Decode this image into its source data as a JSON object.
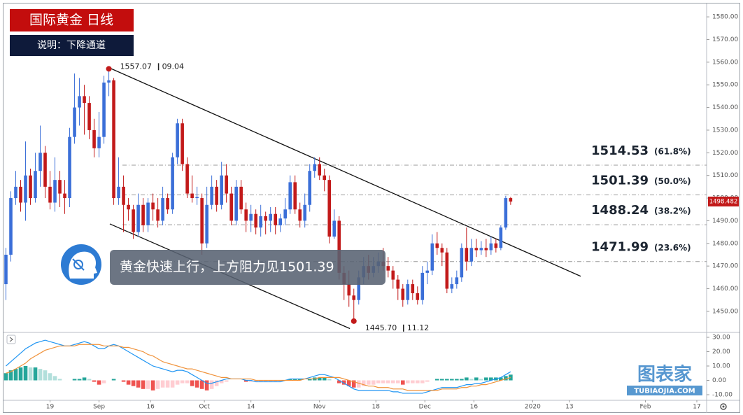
{
  "chart_data": {
    "type": "candlestick",
    "title": "国际黄金 日线",
    "subtitle": "说明：下降通道",
    "xlim": [
      -0.5,
      143
    ],
    "xticks": [
      {
        "value": 9,
        "label": "19"
      },
      {
        "value": 19,
        "label": "Sep"
      },
      {
        "value": 29.5,
        "label": "16"
      },
      {
        "value": 40.5,
        "label": "Oct"
      },
      {
        "value": 50,
        "label": "14"
      },
      {
        "value": 64,
        "label": "Nov"
      },
      {
        "value": 75.5,
        "label": "18"
      },
      {
        "value": 85.5,
        "label": "Dec"
      },
      {
        "value": 95.5,
        "label": "16"
      },
      {
        "value": 107.5,
        "label": "2020"
      },
      {
        "value": 115,
        "label": "13"
      },
      {
        "value": 130.5,
        "label": "Feb"
      },
      {
        "value": 141,
        "label": "17"
      }
    ],
    "ylim": [
      1440.7,
      1585.9
    ],
    "yticks": [
      {
        "value": 1450,
        "label": "1450.00"
      },
      {
        "value": 1460,
        "label": "1460.00"
      },
      {
        "value": 1470,
        "label": "1470.00"
      },
      {
        "value": 1480,
        "label": "1480.00"
      },
      {
        "value": 1490,
        "label": "1490.00"
      },
      {
        "value": 1500,
        "label": "1500.00"
      },
      {
        "value": 1510,
        "label": "1510.00"
      },
      {
        "value": 1520,
        "label": "1520.00"
      },
      {
        "value": 1530,
        "label": "1530.00"
      },
      {
        "value": 1540,
        "label": "1540.00"
      },
      {
        "value": 1550,
        "label": "1550.00"
      },
      {
        "value": 1560,
        "label": "1560.00"
      },
      {
        "value": 1570,
        "label": "1570.00"
      },
      {
        "value": 1580,
        "label": "1580.00"
      }
    ],
    "up_color": "#3b6fd8",
    "down_color": "#c21a1a",
    "ohlc": [
      [
        1462,
        1478,
        1455,
        1475
      ],
      [
        1475,
        1503,
        1472,
        1500
      ],
      [
        1500,
        1512,
        1497,
        1505
      ],
      [
        1505,
        1508,
        1494,
        1498
      ],
      [
        1498,
        1525,
        1490,
        1510
      ],
      [
        1510,
        1513,
        1497,
        1500
      ],
      [
        1500,
        1520,
        1498,
        1512
      ],
      [
        1512,
        1532,
        1505,
        1520
      ],
      [
        1520,
        1523,
        1500,
        1505
      ],
      [
        1505,
        1512,
        1495,
        1498
      ],
      [
        1498,
        1518,
        1494,
        1508
      ],
      [
        1508,
        1512,
        1496,
        1502
      ],
      [
        1502,
        1508,
        1493,
        1500
      ],
      [
        1500,
        1531,
        1496,
        1527
      ],
      [
        1527,
        1555,
        1524,
        1540
      ],
      [
        1540,
        1553,
        1532,
        1545
      ],
      [
        1545,
        1550,
        1528,
        1542
      ],
      [
        1542,
        1545,
        1526,
        1530
      ],
      [
        1530,
        1535,
        1518,
        1522
      ],
      [
        1522,
        1538,
        1518,
        1527
      ],
      [
        1527,
        1554,
        1524,
        1551
      ],
      [
        1551,
        1557.07,
        1545,
        1552
      ],
      [
        1552,
        1553,
        1497,
        1500
      ],
      [
        1500,
        1518,
        1497,
        1505
      ],
      [
        1505,
        1510,
        1485,
        1497
      ],
      [
        1497,
        1500,
        1490,
        1495
      ],
      [
        1495,
        1497,
        1482,
        1485
      ],
      [
        1485,
        1502,
        1483,
        1497
      ],
      [
        1497,
        1500,
        1485,
        1488
      ],
      [
        1488,
        1500,
        1485,
        1498
      ],
      [
        1498,
        1502,
        1490,
        1495
      ],
      [
        1495,
        1500,
        1487,
        1490
      ],
      [
        1490,
        1505,
        1488,
        1500
      ],
      [
        1500,
        1502,
        1493,
        1495
      ],
      [
        1495,
        1520,
        1493,
        1518
      ],
      [
        1518,
        1535,
        1515,
        1533
      ],
      [
        1533,
        1535,
        1512,
        1515
      ],
      [
        1515,
        1518,
        1500,
        1502
      ],
      [
        1502,
        1510,
        1498,
        1500
      ],
      [
        1500,
        1505,
        1497,
        1500.5
      ],
      [
        1500,
        1502,
        1475,
        1480
      ],
      [
        1480,
        1505,
        1478,
        1497
      ],
      [
        1497,
        1510,
        1495,
        1505
      ],
      [
        1505,
        1508,
        1494,
        1497
      ],
      [
        1497,
        1516,
        1495,
        1510
      ],
      [
        1510,
        1515,
        1498,
        1502
      ],
      [
        1502,
        1505,
        1488,
        1490
      ],
      [
        1490,
        1508,
        1488,
        1505
      ],
      [
        1505,
        1508,
        1493,
        1495
      ],
      [
        1495,
        1498,
        1485,
        1490
      ],
      [
        1490,
        1497,
        1485,
        1493
      ],
      [
        1493,
        1495,
        1484,
        1487
      ],
      [
        1487,
        1497,
        1483,
        1492
      ],
      [
        1492,
        1494,
        1484,
        1490
      ],
      [
        1490,
        1496,
        1485,
        1493
      ],
      [
        1493,
        1496,
        1484,
        1488
      ],
      [
        1488,
        1493,
        1485,
        1491
      ],
      [
        1491,
        1500,
        1488,
        1495
      ],
      [
        1495,
        1510,
        1493,
        1507
      ],
      [
        1507,
        1510,
        1493,
        1495
      ],
      [
        1495,
        1498,
        1487,
        1490
      ],
      [
        1490,
        1502,
        1487,
        1497
      ],
      [
        1497,
        1515,
        1494,
        1512
      ],
      [
        1512,
        1518,
        1509,
        1515
      ],
      [
        1515,
        1518,
        1508,
        1510
      ],
      [
        1510,
        1513,
        1503,
        1508
      ],
      [
        1508,
        1510,
        1480,
        1483
      ],
      [
        1483,
        1495,
        1482,
        1490
      ],
      [
        1490,
        1492,
        1464,
        1467
      ],
      [
        1467,
        1470,
        1455,
        1462
      ],
      [
        1462,
        1468,
        1452,
        1457
      ],
      [
        1457,
        1460,
        1445.7,
        1455
      ],
      [
        1455,
        1468,
        1453,
        1465
      ],
      [
        1465,
        1474,
        1462,
        1470
      ],
      [
        1470,
        1475,
        1464,
        1467
      ],
      [
        1467,
        1474,
        1465,
        1470
      ],
      [
        1470,
        1476,
        1467,
        1472
      ],
      [
        1472,
        1478,
        1468,
        1470
      ],
      [
        1470,
        1474,
        1465,
        1468
      ],
      [
        1468,
        1470,
        1460,
        1464
      ],
      [
        1464,
        1466,
        1455,
        1460
      ],
      [
        1460,
        1462,
        1452,
        1455
      ],
      [
        1455,
        1464,
        1453,
        1462
      ],
      [
        1462,
        1464,
        1455,
        1458
      ],
      [
        1458,
        1461,
        1453,
        1455
      ],
      [
        1455,
        1470,
        1453,
        1467
      ],
      [
        1467,
        1472,
        1462,
        1468
      ],
      [
        1468,
        1484,
        1466,
        1480
      ],
      [
        1480,
        1485,
        1475,
        1478
      ],
      [
        1478,
        1480,
        1470,
        1476
      ],
      [
        1476,
        1478,
        1458,
        1460
      ],
      [
        1460,
        1465,
        1458,
        1462
      ],
      [
        1462,
        1468,
        1460,
        1465
      ],
      [
        1465,
        1480,
        1463,
        1478
      ],
      [
        1478,
        1487,
        1468,
        1472
      ],
      [
        1472,
        1482,
        1470,
        1478
      ],
      [
        1478,
        1482,
        1474,
        1477
      ],
      [
        1477,
        1481,
        1475,
        1478
      ],
      [
        1478,
        1482,
        1474,
        1477
      ],
      [
        1477,
        1483,
        1475,
        1480
      ],
      [
        1480,
        1482,
        1476,
        1478
      ],
      [
        1478,
        1488,
        1477,
        1487
      ],
      [
        1487,
        1501,
        1486,
        1500
      ],
      [
        1500,
        1500.5,
        1497,
        1498.482
      ]
    ],
    "last_price": 1498.482,
    "fib_levels": [
      {
        "value": 1514.53,
        "ratio": "(61.8%)"
      },
      {
        "value": 1501.39,
        "ratio": "(50.0%)"
      },
      {
        "value": 1488.24,
        "ratio": "(38.2%)"
      },
      {
        "value": 1471.99,
        "ratio": "(23.6%)"
      }
    ],
    "channel": [
      {
        "points": [
          [
            21.2,
            1557.4
          ],
          [
            117.3,
            1465.5
          ]
        ]
      },
      {
        "points": [
          [
            21.2,
            1488.6
          ],
          [
            70.2,
            1442.4
          ]
        ]
      }
    ],
    "extremes": [
      {
        "x": 21,
        "value": 1557.07,
        "date": "09.04"
      },
      {
        "x": 71,
        "value": 1445.7,
        "label": "1445.70",
        "date": "11.12"
      }
    ],
    "annotation": "黄金快速上行，上方阻力见1501.39",
    "macd": {
      "ylim": [
        -13.9,
        31.95
      ],
      "yticks": [
        {
          "value": 30,
          "label": "30.00"
        },
        {
          "value": 20,
          "label": "20.00"
        },
        {
          "value": 10,
          "label": "10.00"
        },
        {
          "value": 0,
          "label": "0.00"
        },
        {
          "value": -10,
          "label": "-10.00"
        }
      ],
      "macd_line": {
        "color": "#2196f3",
        "values": [
          10,
          13,
          16,
          19,
          22,
          24,
          26,
          27,
          28,
          27,
          26,
          25,
          24,
          24,
          25,
          26,
          27,
          26,
          24,
          22,
          22,
          24,
          25,
          24,
          22,
          20,
          18,
          16,
          14,
          12,
          10,
          9,
          8,
          7,
          6,
          7,
          7,
          6,
          4,
          2,
          0,
          -2,
          -2,
          -1,
          0,
          1,
          1,
          1,
          1,
          0,
          0,
          -1,
          -1,
          -1,
          -1,
          -1,
          -1,
          0,
          1,
          1,
          1,
          1,
          2,
          3,
          4,
          4,
          3,
          2,
          0,
          -2,
          -4,
          -6,
          -7,
          -7,
          -7,
          -7,
          -7,
          -7,
          -7,
          -8,
          -8,
          -9,
          -9,
          -9,
          -9,
          -9,
          -8,
          -7,
          -6,
          -5,
          -5,
          -5,
          -5,
          -4,
          -3,
          -3,
          -2,
          -2,
          -1,
          0,
          1,
          2,
          4,
          6
        ]
      },
      "signal_line": {
        "color": "#f0923a",
        "values": [
          5,
          6,
          8,
          10,
          12,
          15,
          17,
          19,
          21,
          22,
          23,
          24,
          24,
          24,
          24,
          25,
          25,
          25,
          25,
          25,
          24,
          24,
          24,
          24,
          23,
          23,
          22,
          21,
          20,
          18,
          17,
          15,
          13,
          12,
          11,
          10,
          9,
          8,
          8,
          7,
          6,
          5,
          4,
          3,
          2,
          2,
          1,
          1,
          1,
          1,
          1,
          0,
          0,
          0,
          0,
          0,
          0,
          0,
          0,
          0,
          0,
          1,
          1,
          1,
          2,
          2,
          2,
          2,
          2,
          1,
          0,
          -1,
          -2,
          -3,
          -4,
          -4,
          -5,
          -5,
          -5,
          -6,
          -6,
          -6,
          -7,
          -7,
          -7,
          -7,
          -7,
          -7,
          -7,
          -6,
          -6,
          -6,
          -6,
          -5,
          -5,
          -4,
          -4,
          -3,
          -3,
          -2,
          -1,
          0,
          1,
          2
        ]
      },
      "histogram": {
        "values": [
          5,
          7,
          8,
          9,
          10,
          9,
          9,
          8,
          7,
          5,
          3,
          1,
          0,
          0,
          1,
          1,
          2,
          1,
          -1,
          -3,
          -2,
          0,
          1,
          0,
          -1,
          -3,
          -4,
          -5,
          -6,
          -6,
          -7,
          -6,
          -5,
          -5,
          -5,
          -3,
          -2,
          -2,
          -4,
          -5,
          -6,
          -7,
          -6,
          -4,
          -2,
          -1,
          0,
          0,
          0,
          -1,
          -1,
          -1,
          -1,
          -1,
          -1,
          -1,
          -1,
          0,
          1,
          1,
          1,
          0,
          1,
          2,
          2,
          2,
          1,
          0,
          -2,
          -3,
          -4,
          -5,
          -5,
          -4,
          -3,
          -3,
          -2,
          -2,
          -2,
          -2,
          -2,
          -3,
          -2,
          -2,
          -2,
          -2,
          -1,
          0,
          1,
          1,
          1,
          1,
          1,
          1,
          2,
          1,
          2,
          1,
          2,
          2,
          2,
          2,
          3,
          4
        ]
      }
    }
  },
  "watermark": {
    "name": "图表家",
    "url": "TUBIAOJIA.COM"
  }
}
